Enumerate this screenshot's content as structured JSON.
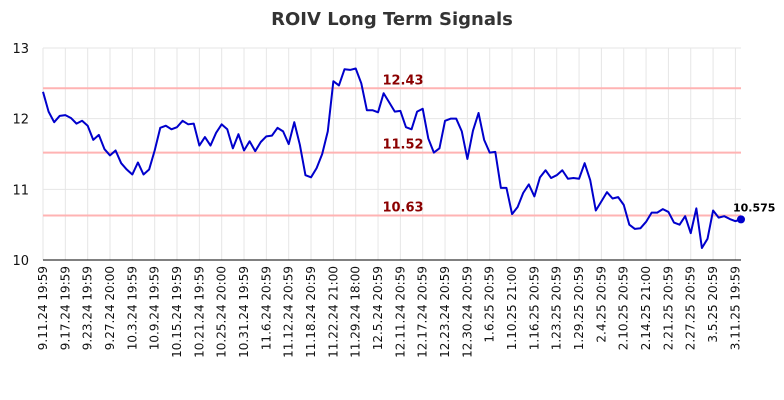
{
  "chart_data": {
    "type": "line",
    "title": "ROIV Long Term Signals",
    "ylim": [
      10,
      13
    ],
    "yticks": [
      10,
      11,
      12,
      13
    ],
    "grid": true,
    "colors": {
      "line": "#0000cc",
      "signal_line": "#ffb3b3",
      "signal_label": "#8b0000",
      "grid": "#e6e6e6"
    },
    "x_tick_labels": [
      "9.11.24 19:59",
      "9.17.24 19:59",
      "9.23.24 19:59",
      "9.27.24 20:00",
      "10.3.24 19:59",
      "10.9.24 19:59",
      "10.15.24 19:59",
      "10.21.24 19:59",
      "10.25.24 20:00",
      "10.31.24 19:59",
      "11.6.24 20:59",
      "11.12.24 20:59",
      "11.18.24 20:59",
      "11.22.24 21:00",
      "11.29.24 18:00",
      "12.5.24 20:59",
      "12.11.24 20:59",
      "12.17.24 20:59",
      "12.23.24 20:59",
      "12.30.24 20:59",
      "1.6.25 20:59",
      "1.10.25 21:00",
      "1.16.25 20:59",
      "1.23.25 20:59",
      "1.29.25 20:59",
      "2.4.25 20:59",
      "2.10.25 20:59",
      "2.14.25 21:00",
      "2.21.25 20:59",
      "2.27.25 20:59",
      "3.5.25 20:59",
      "3.11.25 19:59"
    ],
    "x_tick_positions": [
      0,
      4,
      8,
      12,
      16,
      20,
      24,
      28,
      32,
      36,
      40,
      44,
      48,
      52,
      56,
      60,
      64,
      68,
      72,
      76,
      80,
      84,
      88,
      92,
      96,
      100,
      104,
      108,
      112,
      116,
      120,
      124
    ],
    "signals": [
      {
        "value": 12.43,
        "label": "12.43"
      },
      {
        "value": 11.52,
        "label": "11.52"
      },
      {
        "value": 10.63,
        "label": "10.63"
      }
    ],
    "last_value_label": "10.575",
    "series": [
      {
        "values": [
          12.38,
          12.1,
          11.95,
          12.04,
          12.05,
          12.01,
          11.93,
          11.97,
          11.9,
          11.7,
          11.77,
          11.57,
          11.48,
          11.55,
          11.37,
          11.28,
          11.21,
          11.38,
          11.21,
          11.28,
          11.55,
          11.87,
          11.9,
          11.85,
          11.88,
          11.97,
          11.92,
          11.93,
          11.62,
          11.74,
          11.62,
          11.8,
          11.92,
          11.85,
          11.58,
          11.78,
          11.55,
          11.68,
          11.54,
          11.67,
          11.75,
          11.76,
          11.87,
          11.82,
          11.64,
          11.95,
          11.63,
          11.2,
          11.17,
          11.3,
          11.5,
          11.82,
          12.53,
          12.47,
          12.7,
          12.69,
          12.71,
          12.5,
          12.12,
          12.12,
          12.09,
          12.36,
          12.23,
          12.1,
          12.11,
          11.88,
          11.85,
          12.1,
          12.14,
          11.72,
          11.52,
          11.58,
          11.97,
          12.0,
          12.0,
          11.82,
          11.43,
          11.83,
          12.08,
          11.7,
          11.52,
          11.53,
          11.02,
          11.02,
          10.65,
          10.75,
          10.95,
          11.07,
          10.9,
          11.17,
          11.27,
          11.16,
          11.2,
          11.27,
          11.15,
          11.16,
          11.15,
          11.37,
          11.13,
          10.7,
          10.83,
          10.96,
          10.87,
          10.89,
          10.78,
          10.5,
          10.44,
          10.45,
          10.54,
          10.67,
          10.67,
          10.72,
          10.68,
          10.53,
          10.5,
          10.62,
          10.38,
          10.73,
          10.17,
          10.3,
          10.7,
          10.6,
          10.62,
          10.58,
          10.55,
          10.575
        ]
      }
    ]
  }
}
